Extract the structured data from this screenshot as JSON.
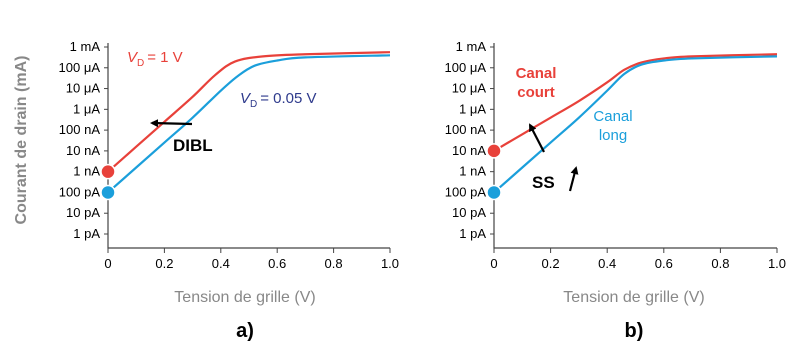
{
  "colors": {
    "red": "#e8413a",
    "blue": "#1b9fdb",
    "dark": "#000000",
    "vd_blue": "#2e3a8c"
  },
  "chart_data": [
    {
      "type": "line",
      "panel_label": "a)",
      "xlabel": "Tension de grille (V)",
      "ylabel": "Courant de drain (mA)",
      "xlim": [
        0,
        1.0
      ],
      "ylim_exp": [
        -12,
        -3
      ],
      "y_scale": "log",
      "x_ticks": [
        "0",
        "0.2",
        "0.4",
        "0.6",
        "0.8",
        "1.0"
      ],
      "y_ticks": [
        "1 pA",
        "10 pA",
        "100 pA",
        "1 nA",
        "10 nA",
        "100 nA",
        "1 μA",
        "10 μA",
        "100 μA",
        "1 mA"
      ],
      "series": [
        {
          "name": "VD = 1 V",
          "color": "red",
          "x": [
            0,
            0.1,
            0.2,
            0.3,
            0.38,
            0.45,
            0.55,
            0.7,
            1.0
          ],
          "y_exp": [
            -9.0,
            -7.8,
            -6.6,
            -5.4,
            -4.35,
            -3.7,
            -3.45,
            -3.35,
            -3.25
          ]
        },
        {
          "name": "VD = 0.05 V",
          "color": "blue",
          "x": [
            0,
            0.1,
            0.2,
            0.3,
            0.4,
            0.46,
            0.52,
            0.6,
            0.7,
            1.0
          ],
          "y_exp": [
            -10.0,
            -8.8,
            -7.6,
            -6.4,
            -5.1,
            -4.4,
            -3.9,
            -3.65,
            -3.5,
            -3.4
          ]
        }
      ],
      "labels": [
        {
          "series": "red",
          "main": "V",
          "sub": "D",
          "rest": "= 1 V"
        },
        {
          "series": "blue",
          "main": "V",
          "sub": "D",
          "rest": "= 0.05 V"
        }
      ],
      "annotation": "DIBL"
    },
    {
      "type": "line",
      "panel_label": "b)",
      "xlabel": "Tension de grille (V)",
      "xlim": [
        0,
        1.0
      ],
      "ylim_exp": [
        -12,
        -3
      ],
      "y_scale": "log",
      "x_ticks": [
        "0",
        "0.2",
        "0.4",
        "0.6",
        "0.8",
        "1.0"
      ],
      "y_ticks": [
        "1 pA",
        "10 pA",
        "100 pA",
        "1 nA",
        "10 nA",
        "100 nA",
        "1 μA",
        "10 μA",
        "100 μA",
        "1 mA"
      ],
      "series": [
        {
          "name": "Canal court",
          "color": "red",
          "x": [
            0,
            0.1,
            0.2,
            0.3,
            0.4,
            0.46,
            0.52,
            0.6,
            0.7,
            1.0
          ],
          "y_exp": [
            -8.0,
            -7.2,
            -6.4,
            -5.6,
            -4.7,
            -4.1,
            -3.75,
            -3.55,
            -3.45,
            -3.35
          ]
        },
        {
          "name": "Canal long",
          "color": "blue",
          "x": [
            0,
            0.1,
            0.2,
            0.3,
            0.4,
            0.46,
            0.52,
            0.6,
            0.7,
            1.0
          ],
          "y_exp": [
            -10.0,
            -8.8,
            -7.6,
            -6.4,
            -5.1,
            -4.3,
            -3.85,
            -3.65,
            -3.55,
            -3.45
          ]
        }
      ],
      "labels": [
        {
          "series": "red",
          "line1": "Canal",
          "line2": "court"
        },
        {
          "series": "blue",
          "line1": "Canal",
          "line2": "long"
        }
      ],
      "annotation": "SS"
    }
  ]
}
